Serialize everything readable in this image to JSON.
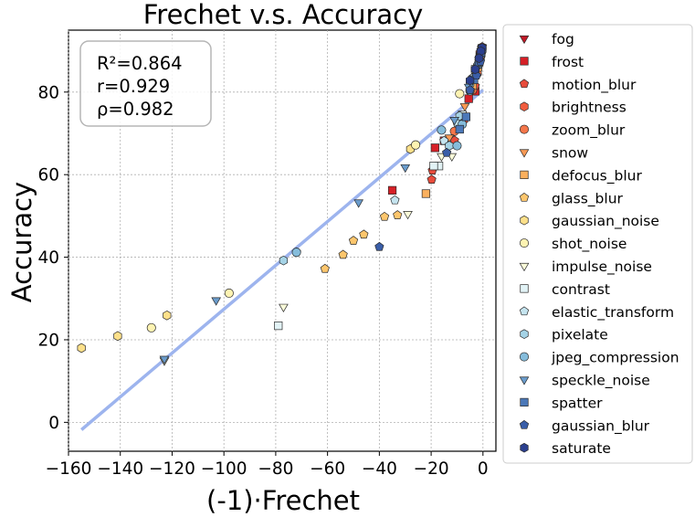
{
  "chart_data": {
    "type": "scatter",
    "title": "Frechet  v.s.  Accuracy",
    "xlabel": "(-1)·Frechet",
    "ylabel": "Accuracy",
    "xlim": [
      -160,
      5
    ],
    "ylim": [
      -7,
      95
    ],
    "xticks": [
      -160,
      -140,
      -120,
      -100,
      -80,
      -60,
      -40,
      -20,
      0
    ],
    "yticks": [
      0,
      20,
      40,
      60,
      80
    ],
    "grid": true,
    "legend_position": "outside-right",
    "stats": [
      "R²=0.864",
      "r=0.929",
      "ρ=0.982"
    ],
    "fit_line": {
      "x": [
        -155,
        0
      ],
      "y": [
        -1.8,
        80.5
      ],
      "color": "#9db4ee"
    },
    "series": [
      {
        "name": "fog",
        "marker": "triangle-down",
        "color": "#c21a27",
        "points": [
          [
            -0.3,
            90.8
          ],
          [
            -0.5,
            89.8
          ],
          [
            -1,
            88.6
          ],
          [
            -1.6,
            86.7
          ],
          [
            -3,
            83.2
          ]
        ]
      },
      {
        "name": "frost",
        "marker": "square",
        "color": "#d62027",
        "points": [
          [
            -0.4,
            90.5
          ],
          [
            -1,
            88.6
          ],
          [
            -3,
            80.2
          ],
          [
            -5.5,
            78.4
          ],
          [
            -15,
            68.2
          ],
          [
            -18.5,
            66.5
          ],
          [
            -35,
            56.2
          ]
        ]
      },
      {
        "name": "motion_blur",
        "marker": "pentagon",
        "color": "#e84c3c",
        "points": [
          [
            -0.5,
            89.9
          ],
          [
            -1.5,
            87.5
          ],
          [
            -3,
            81.5
          ],
          [
            -7,
            73.5
          ],
          [
            -11,
            68.3
          ],
          [
            -19.5,
            61.0
          ],
          [
            -19.8,
            58.8
          ]
        ]
      },
      {
        "name": "brightness",
        "marker": "hexagon",
        "color": "#f05c3e",
        "points": [
          [
            -0.3,
            90.9
          ],
          [
            -0.8,
            90.0
          ],
          [
            -1.2,
            89.4
          ],
          [
            -2,
            86.0
          ]
        ]
      },
      {
        "name": "zoom_blur",
        "marker": "circle",
        "color": "#f4764a",
        "points": [
          [
            -0.8,
            88.8
          ],
          [
            -2.2,
            84.5
          ],
          [
            -4,
            80.5
          ],
          [
            -9,
            72.5
          ],
          [
            -11,
            70.5
          ]
        ]
      },
      {
        "name": "snow",
        "marker": "triangle-down",
        "color": "#f99a55",
        "points": [
          [
            -0.5,
            90.5
          ],
          [
            -1.5,
            87.8
          ],
          [
            -3,
            83.5
          ],
          [
            -7,
            76.6
          ],
          [
            -13,
            69.0
          ]
        ]
      },
      {
        "name": "defocus_blur",
        "marker": "square",
        "color": "#fbb05e",
        "points": [
          [
            -0.8,
            89.5
          ],
          [
            -2,
            86.0
          ],
          [
            -4,
            81.6
          ],
          [
            -8,
            74.2
          ],
          [
            -22,
            55.4
          ]
        ]
      },
      {
        "name": "glass_blur",
        "marker": "pentagon",
        "color": "#fdc66d",
        "points": [
          [
            -33,
            50.2
          ],
          [
            -38,
            49.8
          ],
          [
            -46,
            45.5
          ],
          [
            -50,
            44.0
          ],
          [
            -54,
            40.6
          ],
          [
            -61,
            37.2
          ]
        ]
      },
      {
        "name": "gaussian_noise",
        "marker": "hexagon",
        "color": "#fde08a",
        "points": [
          [
            -28,
            66.2
          ],
          [
            -122,
            25.9
          ],
          [
            -141,
            20.9
          ],
          [
            -155,
            18.0
          ]
        ]
      },
      {
        "name": "shot_noise",
        "marker": "circle",
        "color": "#fef3b2",
        "points": [
          [
            -9,
            79.6
          ],
          [
            -26,
            67.2
          ],
          [
            -98,
            31.3
          ],
          [
            -128,
            22.9
          ]
        ]
      },
      {
        "name": "impulse_noise",
        "marker": "triangle-down",
        "color": "#fafbd9",
        "points": [
          [
            -12,
            64.5
          ],
          [
            -16,
            64.5
          ],
          [
            -29,
            50.5
          ],
          [
            -77,
            28.0
          ],
          [
            -123,
            15.0
          ]
        ]
      },
      {
        "name": "contrast",
        "marker": "square",
        "color": "#e2f3f6",
        "points": [
          [
            -0.5,
            90.2
          ],
          [
            -3,
            85.5
          ],
          [
            -8,
            74.5
          ],
          [
            -17,
            62.1
          ],
          [
            -19,
            62.1
          ],
          [
            -79,
            23.4
          ]
        ]
      },
      {
        "name": "elastic_transform",
        "marker": "pentagon",
        "color": "#c5e4ef",
        "points": [
          [
            -1.5,
            88.0
          ],
          [
            -4,
            83.5
          ],
          [
            -10,
            72.5
          ],
          [
            -15,
            68.2
          ],
          [
            -34,
            53.8
          ],
          [
            -72,
            41.2
          ]
        ]
      },
      {
        "name": "pixelate",
        "marker": "hexagon",
        "color": "#a5d3e6",
        "points": [
          [
            -1,
            89.0
          ],
          [
            -3,
            85.5
          ],
          [
            -5,
            82.0
          ],
          [
            -9,
            74.2
          ],
          [
            -13,
            67.0
          ],
          [
            -77,
            39.2
          ]
        ]
      },
      {
        "name": "jpeg_compression",
        "marker": "circle",
        "color": "#85bcdb",
        "points": [
          [
            -2,
            86.5
          ],
          [
            -5,
            80.3
          ],
          [
            -8,
            72.2
          ],
          [
            -10,
            67.0
          ],
          [
            -16,
            70.8
          ],
          [
            -72,
            41.2
          ]
        ]
      },
      {
        "name": "speckle_noise",
        "marker": "triangle-down",
        "color": "#6a9ccc",
        "points": [
          [
            -2,
            86.2
          ],
          [
            -5.5,
            81.3
          ],
          [
            -11,
            73.3
          ],
          [
            -30,
            61.8
          ],
          [
            -48,
            53.3
          ],
          [
            -103,
            29.6
          ],
          [
            -123,
            15.4
          ]
        ]
      },
      {
        "name": "spatter",
        "marker": "square",
        "color": "#4b78b8",
        "points": [
          [
            -0.3,
            90.6
          ],
          [
            -0.8,
            89.6
          ],
          [
            -1.5,
            87.2
          ],
          [
            -3.5,
            83.0
          ],
          [
            -6.5,
            74.0
          ],
          [
            -9,
            71.0
          ]
        ]
      },
      {
        "name": "gaussian_blur",
        "marker": "pentagon",
        "color": "#3a5ea8",
        "points": [
          [
            -1,
            87.4
          ],
          [
            -2.5,
            84.0
          ],
          [
            -5,
            80.5
          ],
          [
            -14,
            65.3
          ],
          [
            -40,
            42.5
          ]
        ]
      },
      {
        "name": "saturate",
        "marker": "hexagon",
        "color": "#2b3f8e",
        "points": [
          [
            -0.3,
            90.7
          ],
          [
            -0.8,
            89.9
          ],
          [
            -1.5,
            88.2
          ],
          [
            -3,
            85.5
          ],
          [
            -5,
            82.8
          ]
        ]
      }
    ]
  }
}
